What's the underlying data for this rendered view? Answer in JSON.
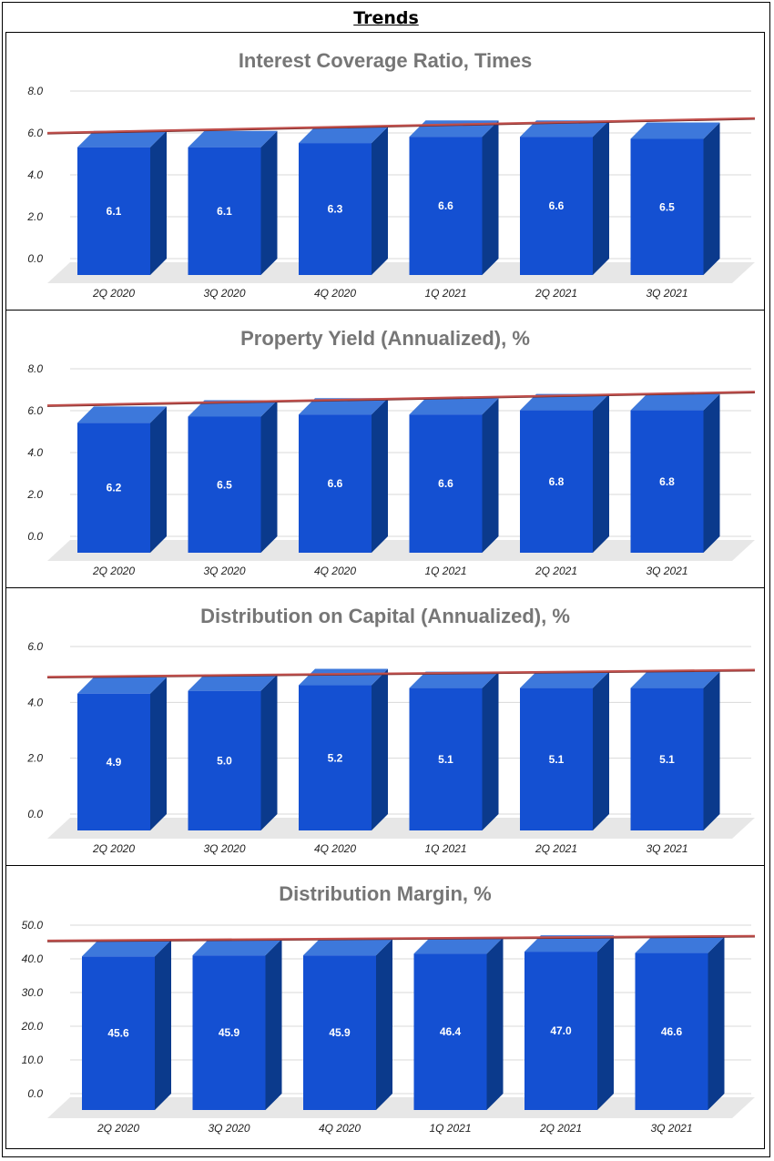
{
  "page": {
    "title": "Trends"
  },
  "colors": {
    "bar_front": "#1450d2",
    "bar_side": "#0b3a8c",
    "bar_top": "#3d78db",
    "trend": "#c0504d",
    "floor": "#e7e7e7",
    "grid": "#d9d9d9",
    "title": "#767676"
  },
  "chart_data": [
    {
      "type": "bar",
      "title": "Interest Coverage Ratio, Times",
      "categories": [
        "2Q 2020",
        "3Q 2020",
        "4Q 2020",
        "1Q 2021",
        "2Q 2021",
        "3Q 2021"
      ],
      "values": [
        6.1,
        6.1,
        6.3,
        6.6,
        6.6,
        6.5
      ],
      "labels": [
        "6.1",
        "6.1",
        "6.3",
        "6.6",
        "6.6",
        "6.5"
      ],
      "yticks": [
        "0.0",
        "2.0",
        "4.0",
        "6.0",
        "8.0"
      ],
      "ylim": [
        0,
        8
      ],
      "trendline": [
        6.05,
        6.75
      ],
      "grid": true,
      "xlabel": "",
      "ylabel": ""
    },
    {
      "type": "bar",
      "title": "Property Yield (Annualized), %",
      "categories": [
        "2Q 2020",
        "3Q 2020",
        "4Q 2020",
        "1Q 2021",
        "2Q 2021",
        "3Q 2021"
      ],
      "values": [
        6.2,
        6.5,
        6.6,
        6.6,
        6.8,
        6.8
      ],
      "labels": [
        "6.2",
        "6.5",
        "6.6",
        "6.6",
        "6.8",
        "6.8"
      ],
      "yticks": [
        "0.0",
        "2.0",
        "4.0",
        "6.0",
        "8.0"
      ],
      "ylim": [
        0,
        8
      ],
      "trendline": [
        6.3,
        6.95
      ],
      "grid": true,
      "xlabel": "",
      "ylabel": ""
    },
    {
      "type": "bar",
      "title": "Distribution on Capital (Annualized), %",
      "categories": [
        "2Q 2020",
        "3Q 2020",
        "4Q 2020",
        "1Q 2021",
        "2Q 2021",
        "3Q 2021"
      ],
      "values": [
        4.9,
        5.0,
        5.2,
        5.1,
        5.1,
        5.1
      ],
      "labels": [
        "4.9",
        "5.0",
        "5.2",
        "5.1",
        "5.1",
        "5.1"
      ],
      "yticks": [
        "0.0",
        "2.0",
        "4.0",
        "6.0"
      ],
      "ylim": [
        0,
        6
      ],
      "trendline": [
        4.95,
        5.2
      ],
      "grid": true,
      "xlabel": "",
      "ylabel": ""
    },
    {
      "type": "bar",
      "title": "Distribution Margin, %",
      "categories": [
        "2Q 2020",
        "3Q 2020",
        "4Q 2020",
        "1Q 2021",
        "2Q 2021",
        "3Q 2021"
      ],
      "values": [
        45.6,
        45.9,
        45.9,
        46.4,
        47.0,
        46.6
      ],
      "labels": [
        "45.6",
        "45.9",
        "45.9",
        "46.4",
        "47.0",
        "46.6"
      ],
      "yticks": [
        "0.0",
        "10.0",
        "20.0",
        "30.0",
        "40.0",
        "50.0"
      ],
      "ylim": [
        0,
        50
      ],
      "trendline": [
        45.7,
        47.1
      ],
      "grid": true,
      "xlabel": "",
      "ylabel": ""
    }
  ]
}
